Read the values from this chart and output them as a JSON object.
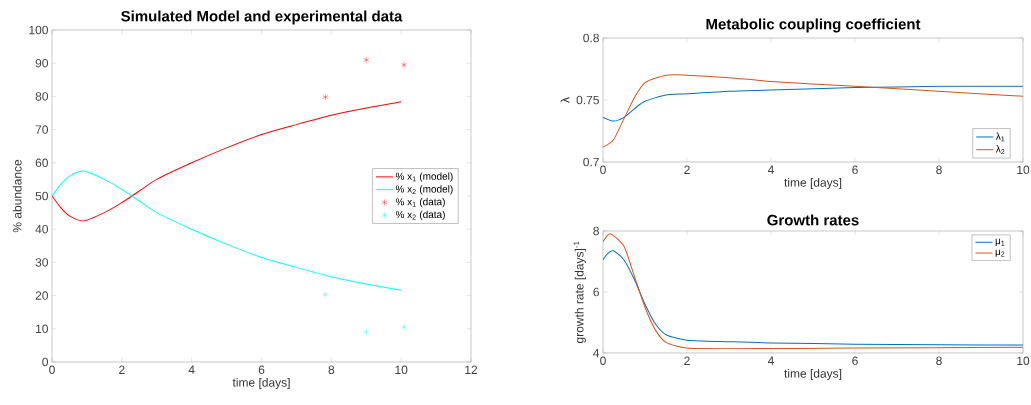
{
  "chart_data": [
    {
      "type": "line",
      "title": "Simulated Model and experimental data",
      "xlabel": "time [days]",
      "ylabel": "% abundance",
      "xlim": [
        0,
        12
      ],
      "ylim": [
        0,
        100
      ],
      "xticks": [
        0,
        2,
        4,
        6,
        8,
        10,
        12
      ],
      "yticks": [
        0,
        10,
        20,
        30,
        40,
        50,
        60,
        70,
        80,
        90,
        100
      ],
      "legend": "right",
      "marker": "none",
      "series": [
        {
          "name": "% x$_{1}$ (model)",
          "color": "#ff0000",
          "x": [
            0,
            0.25,
            0.5,
            0.9,
            1.5,
            2,
            2.5,
            3,
            4,
            5,
            6,
            7,
            8,
            9,
            10
          ],
          "values": [
            50,
            46.5,
            44,
            42.5,
            45,
            48,
            51.5,
            55,
            60,
            64.5,
            68.5,
            71.5,
            74.3,
            76.5,
            78.4
          ]
        },
        {
          "name": "% x$_{2}$ (model)",
          "color": "#00ffff",
          "x": [
            0,
            0.25,
            0.5,
            0.9,
            1.5,
            2,
            2.5,
            3,
            4,
            5,
            6,
            7,
            8,
            9,
            10
          ],
          "values": [
            50,
            53.5,
            56,
            57.5,
            55,
            52,
            48.5,
            45,
            40,
            35.5,
            31.5,
            28.5,
            25.7,
            23.5,
            21.6
          ]
        },
        {
          "name": "% x$_{1}$ (data)",
          "color": "#ff0000",
          "type": "scatter",
          "marker": "cross",
          "x": [
            7.83,
            9,
            10.08
          ],
          "values": [
            79.8,
            91,
            89.5
          ]
        },
        {
          "name": "% x$_{2}$ (data)",
          "color": "#00ffff",
          "type": "scatter",
          "marker": "cross",
          "x": [
            7.83,
            9,
            10.08
          ],
          "values": [
            20.3,
            9,
            10.5
          ]
        }
      ]
    },
    {
      "type": "line",
      "title": "Metabolic coupling coefficient",
      "xlabel": "time [days]",
      "ylabel": "λ",
      "xlim": [
        0,
        10
      ],
      "ylim": [
        0.7,
        0.8
      ],
      "xticks": [
        0,
        2,
        4,
        6,
        8,
        10
      ],
      "yticks": [
        0.7,
        0.75,
        0.8
      ],
      "legend": "bottom right",
      "marker": "none",
      "series": [
        {
          "name": "λ$_{1}$",
          "color": "#0072bd",
          "x": [
            0,
            0.25,
            0.5,
            0.75,
            1,
            1.5,
            2,
            3,
            4,
            6,
            8,
            10
          ],
          "values": [
            0.736,
            0.733,
            0.736,
            0.743,
            0.749,
            0.754,
            0.755,
            0.757,
            0.758,
            0.76,
            0.761,
            0.761
          ]
        },
        {
          "name": "λ$_{2}$",
          "color": "#d95319",
          "x": [
            0,
            0.25,
            0.5,
            0.75,
            1,
            1.5,
            2,
            3,
            4,
            6,
            6.5,
            8,
            10
          ],
          "values": [
            0.712,
            0.718,
            0.735,
            0.752,
            0.764,
            0.77,
            0.77,
            0.768,
            0.765,
            0.761,
            0.76,
            0.757,
            0.753
          ]
        }
      ]
    },
    {
      "type": "line",
      "title": "Growth rates",
      "xlabel": "time [days]",
      "ylabel": "growth rate [days]$^{-1}$",
      "xlim": [
        0,
        10
      ],
      "ylim": [
        4,
        8
      ],
      "xticks": [
        0,
        2,
        4,
        6,
        8,
        10
      ],
      "yticks": [
        4,
        6,
        8
      ],
      "legend": "top right",
      "marker": "none",
      "series": [
        {
          "name": "μ$_{1}$",
          "color": "#0072bd",
          "x": [
            0,
            0.1,
            0.25,
            0.5,
            0.75,
            1,
            1.25,
            1.5,
            2,
            3,
            4,
            6,
            8,
            10
          ],
          "values": [
            7.05,
            7.25,
            7.35,
            7.05,
            6.4,
            5.6,
            4.95,
            4.6,
            4.42,
            4.37,
            4.33,
            4.29,
            4.27,
            4.26
          ]
        },
        {
          "name": "μ$_{2}$",
          "color": "#d95319",
          "x": [
            0,
            0.1,
            0.2,
            0.5,
            0.75,
            1,
            1.25,
            1.5,
            2,
            3,
            6,
            10
          ],
          "values": [
            7.65,
            7.85,
            7.9,
            7.5,
            6.5,
            5.5,
            4.75,
            4.35,
            4.16,
            4.14,
            4.16,
            4.19
          ]
        }
      ]
    }
  ]
}
